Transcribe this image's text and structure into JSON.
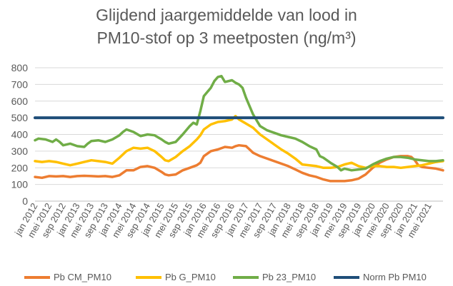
{
  "chart_data": {
    "type": "line",
    "title_lines": [
      "Glijdend jaargemiddelde van lood in",
      "PM10-stof op 3 meetposten (ng/m³)"
    ],
    "y_ticks": [
      "0",
      "100",
      "200",
      "300",
      "400",
      "500",
      "600",
      "700",
      "800"
    ],
    "ylim": [
      0,
      800
    ],
    "x_tick_labels": [
      "jan 2012",
      "mei 2012",
      "sep 2012",
      "jan 2013",
      "mei 2013",
      "sep 2013",
      "jan 2014",
      "mei 2014",
      "sep 2014",
      "jan 2015",
      "mei 2015",
      "sep 2015",
      "jan 2016",
      "mei 2016",
      "sep 2016",
      "jan 2017",
      "mei 2017",
      "sep 2017",
      "jan 2018",
      "mei 2018",
      "sep 2018",
      "jan 2019",
      "mei 2019",
      "sep 2019",
      "jan 2020",
      "mei 2020",
      "sep 2020",
      "jan 2021",
      "mei 2021"
    ],
    "grid": "horizontal",
    "legend_position": "bottom",
    "series": [
      {
        "name": "Pb CM_PM10",
        "color": "#ED7D31",
        "points": [
          [
            0,
            145
          ],
          [
            2,
            140
          ],
          [
            4,
            150
          ],
          [
            6,
            148
          ],
          [
            8,
            150
          ],
          [
            10,
            145
          ],
          [
            12,
            150
          ],
          [
            14,
            152
          ],
          [
            16,
            150
          ],
          [
            18,
            148
          ],
          [
            20,
            150
          ],
          [
            22,
            145
          ],
          [
            24,
            155
          ],
          [
            26,
            185
          ],
          [
            28,
            185
          ],
          [
            30,
            205
          ],
          [
            32,
            210
          ],
          [
            34,
            200
          ],
          [
            36,
            175
          ],
          [
            37,
            160
          ],
          [
            38,
            155
          ],
          [
            40,
            160
          ],
          [
            42,
            185
          ],
          [
            44,
            200
          ],
          [
            46,
            215
          ],
          [
            47,
            230
          ],
          [
            48,
            270
          ],
          [
            50,
            300
          ],
          [
            52,
            310
          ],
          [
            54,
            325
          ],
          [
            56,
            320
          ],
          [
            57,
            330
          ],
          [
            58,
            335
          ],
          [
            60,
            330
          ],
          [
            61,
            310
          ],
          [
            62,
            290
          ],
          [
            64,
            270
          ],
          [
            66,
            255
          ],
          [
            68,
            240
          ],
          [
            70,
            225
          ],
          [
            72,
            210
          ],
          [
            74,
            190
          ],
          [
            76,
            170
          ],
          [
            78,
            155
          ],
          [
            80,
            145
          ],
          [
            82,
            130
          ],
          [
            84,
            120
          ],
          [
            86,
            120
          ],
          [
            88,
            120
          ],
          [
            90,
            125
          ],
          [
            92,
            135
          ],
          [
            94,
            160
          ],
          [
            96,
            200
          ],
          [
            98,
            230
          ],
          [
            100,
            250
          ],
          [
            102,
            265
          ],
          [
            104,
            270
          ],
          [
            106,
            270
          ],
          [
            107,
            265
          ],
          [
            108,
            245
          ],
          [
            109,
            215
          ],
          [
            110,
            205
          ],
          [
            112,
            200
          ],
          [
            114,
            195
          ],
          [
            116,
            185
          ]
        ]
      },
      {
        "name": "Pb G_PM10",
        "color": "#FFC000",
        "points": [
          [
            0,
            240
          ],
          [
            2,
            235
          ],
          [
            4,
            240
          ],
          [
            6,
            235
          ],
          [
            8,
            225
          ],
          [
            10,
            215
          ],
          [
            12,
            225
          ],
          [
            14,
            235
          ],
          [
            16,
            245
          ],
          [
            18,
            240
          ],
          [
            20,
            235
          ],
          [
            22,
            225
          ],
          [
            24,
            260
          ],
          [
            26,
            300
          ],
          [
            28,
            320
          ],
          [
            30,
            315
          ],
          [
            32,
            320
          ],
          [
            34,
            300
          ],
          [
            36,
            265
          ],
          [
            37,
            245
          ],
          [
            38,
            240
          ],
          [
            40,
            265
          ],
          [
            42,
            300
          ],
          [
            44,
            330
          ],
          [
            46,
            370
          ],
          [
            47,
            395
          ],
          [
            48,
            430
          ],
          [
            50,
            460
          ],
          [
            52,
            475
          ],
          [
            54,
            480
          ],
          [
            56,
            490
          ],
          [
            57,
            510
          ],
          [
            58,
            490
          ],
          [
            60,
            465
          ],
          [
            62,
            440
          ],
          [
            64,
            400
          ],
          [
            66,
            370
          ],
          [
            68,
            340
          ],
          [
            70,
            310
          ],
          [
            72,
            285
          ],
          [
            74,
            255
          ],
          [
            76,
            220
          ],
          [
            78,
            215
          ],
          [
            80,
            210
          ],
          [
            82,
            200
          ],
          [
            84,
            200
          ],
          [
            86,
            205
          ],
          [
            88,
            220
          ],
          [
            90,
            230
          ],
          [
            92,
            210
          ],
          [
            94,
            200
          ],
          [
            96,
            210
          ],
          [
            98,
            210
          ],
          [
            100,
            205
          ],
          [
            102,
            205
          ],
          [
            104,
            200
          ],
          [
            106,
            205
          ],
          [
            108,
            210
          ],
          [
            110,
            215
          ],
          [
            112,
            225
          ],
          [
            114,
            235
          ],
          [
            116,
            240
          ]
        ]
      },
      {
        "name": "Pb 23_PM10",
        "color": "#70AD47",
        "points": [
          [
            0,
            365
          ],
          [
            1,
            375
          ],
          [
            3,
            370
          ],
          [
            5,
            355
          ],
          [
            6,
            370
          ],
          [
            7,
            355
          ],
          [
            8,
            335
          ],
          [
            10,
            345
          ],
          [
            12,
            330
          ],
          [
            14,
            325
          ],
          [
            15,
            345
          ],
          [
            16,
            360
          ],
          [
            18,
            365
          ],
          [
            20,
            355
          ],
          [
            22,
            370
          ],
          [
            24,
            395
          ],
          [
            25,
            415
          ],
          [
            26,
            430
          ],
          [
            28,
            415
          ],
          [
            30,
            390
          ],
          [
            32,
            400
          ],
          [
            34,
            395
          ],
          [
            36,
            370
          ],
          [
            37,
            355
          ],
          [
            38,
            345
          ],
          [
            40,
            355
          ],
          [
            42,
            400
          ],
          [
            44,
            450
          ],
          [
            45,
            470
          ],
          [
            46,
            460
          ],
          [
            47,
            540
          ],
          [
            48,
            630
          ],
          [
            50,
            680
          ],
          [
            51,
            720
          ],
          [
            52,
            745
          ],
          [
            53,
            750
          ],
          [
            54,
            715
          ],
          [
            56,
            725
          ],
          [
            57,
            710
          ],
          [
            58,
            700
          ],
          [
            59,
            680
          ],
          [
            60,
            620
          ],
          [
            62,
            520
          ],
          [
            64,
            450
          ],
          [
            66,
            425
          ],
          [
            68,
            410
          ],
          [
            70,
            395
          ],
          [
            72,
            385
          ],
          [
            74,
            375
          ],
          [
            76,
            355
          ],
          [
            78,
            330
          ],
          [
            80,
            310
          ],
          [
            81,
            270
          ],
          [
            82,
            260
          ],
          [
            84,
            230
          ],
          [
            86,
            205
          ],
          [
            87,
            185
          ],
          [
            88,
            195
          ],
          [
            90,
            185
          ],
          [
            92,
            190
          ],
          [
            94,
            195
          ],
          [
            96,
            220
          ],
          [
            98,
            240
          ],
          [
            100,
            255
          ],
          [
            102,
            265
          ],
          [
            104,
            265
          ],
          [
            106,
            260
          ],
          [
            108,
            250
          ],
          [
            110,
            245
          ],
          [
            112,
            240
          ],
          [
            114,
            240
          ],
          [
            116,
            245
          ]
        ]
      },
      {
        "name": "Norm Pb PM10",
        "color": "#1F4E79",
        "points": [
          [
            0,
            500
          ],
          [
            116,
            500
          ]
        ]
      }
    ]
  }
}
